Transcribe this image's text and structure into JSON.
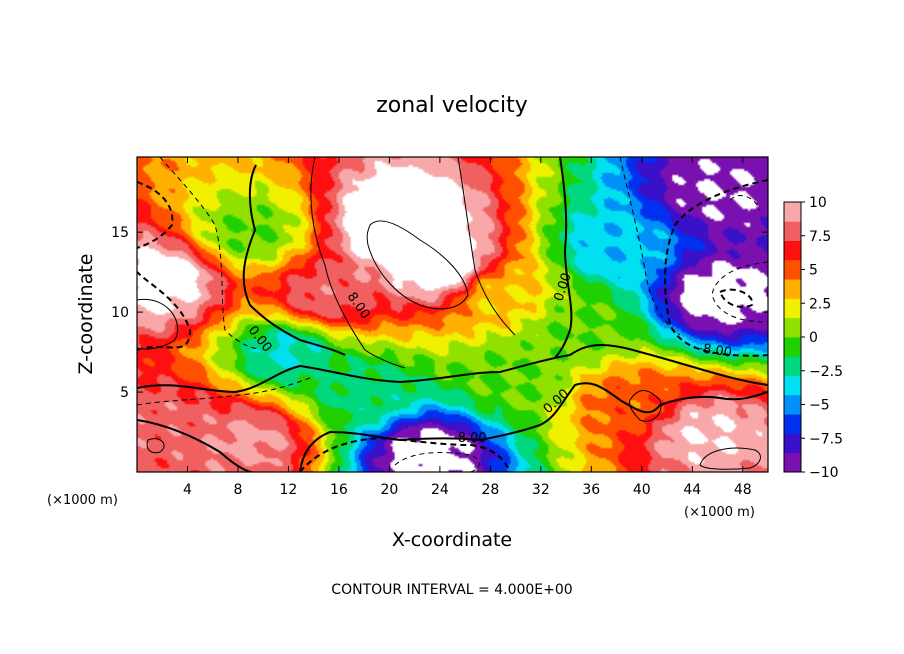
{
  "chart_data": {
    "type": "heatmap",
    "title": "zonal velocity",
    "xlabel": "X-coordinate",
    "ylabel": "Z-coordinate",
    "x_unit": "(×1000 m)",
    "y_unit": "(×1000 m)",
    "xlim": [
      0,
      50
    ],
    "ylim": [
      0,
      19.7
    ],
    "x_ticks": [
      4,
      8,
      12,
      16,
      20,
      24,
      28,
      32,
      36,
      40,
      44,
      48
    ],
    "y_ticks": [
      5,
      10,
      15
    ],
    "colorbar": {
      "range": [
        -10,
        10
      ],
      "tick_values": [
        10,
        7.5,
        5,
        2.5,
        0,
        -2.5,
        -5,
        -7.5,
        -10
      ],
      "tick_labels": [
        "10",
        "7.5",
        "5",
        "2.5",
        "0",
        "−2.5",
        "−5",
        "−7.5",
        "−10"
      ],
      "colors": [
        "#7a10b0",
        "#3a10c8",
        "#0030f0",
        "#0090f8",
        "#00e0f0",
        "#00d880",
        "#20d000",
        "#90e000",
        "#f0f000",
        "#ffb000",
        "#ff5000",
        "#ff1010",
        "#f06060",
        "#f8a8a8"
      ]
    },
    "features": [
      {
        "x": 24,
        "z": 13.0,
        "value": 12
      },
      {
        "x": 21,
        "z": 15.5,
        "value": 13
      },
      {
        "x": 15,
        "z": 11.0,
        "value": 8
      },
      {
        "x": 9,
        "z": 15.0,
        "value": 0
      },
      {
        "x": 2,
        "z": 12.0,
        "value": 11
      },
      {
        "x": 2,
        "z": 3.0,
        "value": 8
      },
      {
        "x": 9,
        "z": 2.0,
        "value": 9
      },
      {
        "x": 18,
        "z": 5.0,
        "value": -2
      },
      {
        "x": 23,
        "z": 1.2,
        "value": -11
      },
      {
        "x": 29,
        "z": 11.0,
        "value": 3
      },
      {
        "x": 35,
        "z": 9.0,
        "value": 0
      },
      {
        "x": 38,
        "z": 14.0,
        "value": -4
      },
      {
        "x": 46,
        "z": 11.0,
        "value": -11
      },
      {
        "x": 46,
        "z": 17.5,
        "value": -10
      },
      {
        "x": 45,
        "z": 2.5,
        "value": 10
      },
      {
        "x": 39,
        "z": 4.5,
        "value": 5
      },
      {
        "x": 12,
        "z": 7.5,
        "value": -3
      },
      {
        "x": 30,
        "z": 6.0,
        "value": 0
      }
    ],
    "contour_interval": 4.0,
    "contour_labels": [
      "0.00",
      "8.00",
      "0.00",
      "-8.00",
      "0.00",
      "-8.00"
    ],
    "annotation": "CONTOUR INTERVAL = 4.000E+00"
  }
}
